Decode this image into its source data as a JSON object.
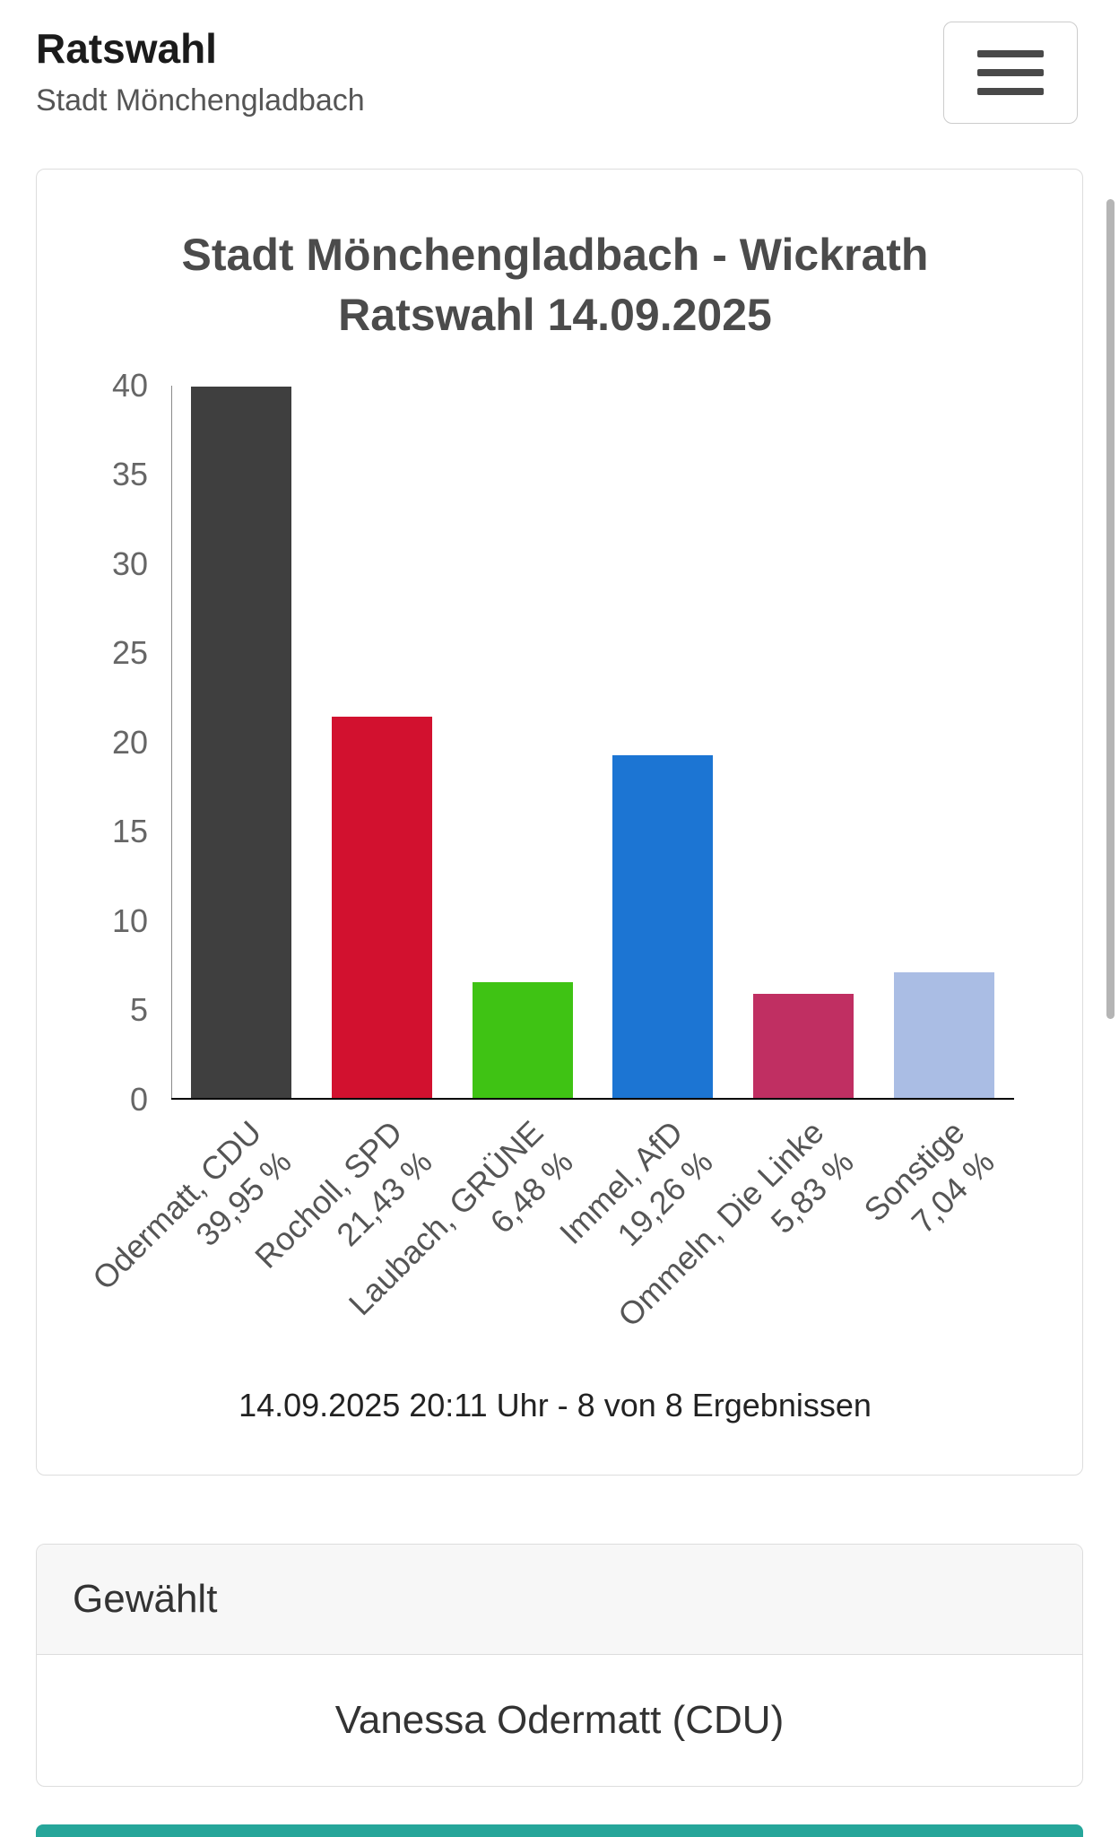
{
  "header": {
    "title": "Ratswahl",
    "subtitle": "Stadt Mönchengladbach",
    "menu_icon": "hamburger-icon"
  },
  "chart_data": {
    "type": "bar",
    "title": "Stadt Mönchengladbach - Wickrath Ratswahl 14.09.2025",
    "title_lines": [
      "Stadt Mönchengladbach - Wickrath",
      "Ratswahl 14.09.2025"
    ],
    "categories": [
      "Odermatt, CDU",
      "Rocholl, SPD",
      "Laubach, GRÜNE",
      "Immel, AfD",
      "Ommeln, Die Linke",
      "Sonstige"
    ],
    "values": [
      39.95,
      21.43,
      6.48,
      19.26,
      5.83,
      7.04
    ],
    "value_labels": [
      "39,95 %",
      "21,43 %",
      "6,48 %",
      "19,26 %",
      "5,83 %",
      "7,04 %"
    ],
    "colors": [
      "#3f3f3f",
      "#d2112f",
      "#3fc314",
      "#1c75d3",
      "#c02f62",
      "#aabde4"
    ],
    "ylim": [
      0,
      40
    ],
    "yticks": [
      0,
      5,
      10,
      15,
      20,
      25,
      30,
      35,
      40
    ],
    "grid": false,
    "legend": "none",
    "xlabel": "",
    "ylabel": "",
    "caption": "14.09.2025 20:11 Uhr - 8 von 8 Ergebnissen"
  },
  "result_card": {
    "header": "Gewählt",
    "winner": "Vanessa Odermatt (CDU)"
  },
  "theme": {
    "footer_accent": "#26a69a"
  }
}
